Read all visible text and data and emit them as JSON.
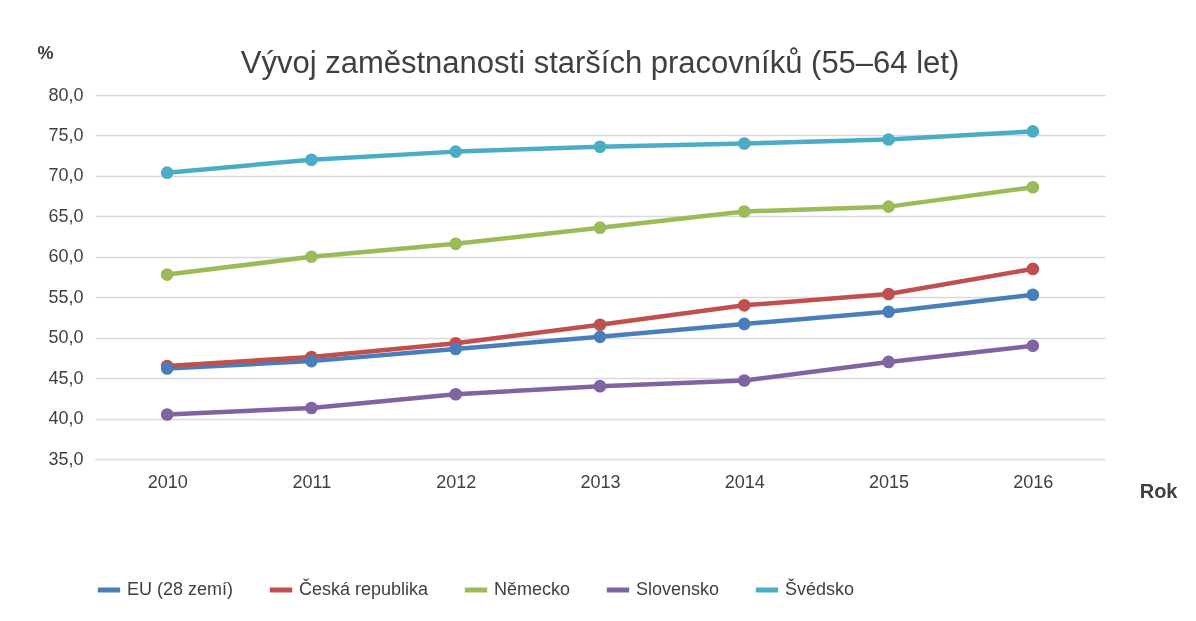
{
  "chart_data": {
    "type": "line",
    "title": "Vývoj zaměstnanosti starších pracovníků (55–64 let)",
    "xlabel": "Rok",
    "ylabel": "%",
    "categories": [
      "2010",
      "2011",
      "2012",
      "2013",
      "2014",
      "2015",
      "2016"
    ],
    "series": [
      {
        "name": "EU (28 zemí)",
        "color": "#4a7ebb",
        "values": [
          46.2,
          47.1,
          48.6,
          50.1,
          51.7,
          53.2,
          55.3
        ]
      },
      {
        "name": "Česká republika",
        "color": "#c0504d",
        "values": [
          46.5,
          47.6,
          49.3,
          51.6,
          54.0,
          55.4,
          58.5
        ]
      },
      {
        "name": "Německo",
        "color": "#9bbb59",
        "values": [
          57.8,
          60.0,
          61.6,
          63.6,
          65.6,
          66.2,
          68.6
        ]
      },
      {
        "name": "Slovensko",
        "color": "#8064a2",
        "values": [
          40.5,
          41.3,
          43.0,
          44.0,
          44.7,
          47.0,
          49.0
        ]
      },
      {
        "name": "Švédsko",
        "color": "#4bacc6",
        "values": [
          70.4,
          72.0,
          73.0,
          73.6,
          74.0,
          74.5,
          75.5
        ]
      }
    ],
    "ylim": [
      35,
      80
    ],
    "yticks": [
      {
        "value": 35,
        "label": "35,0"
      },
      {
        "value": 40,
        "label": "40,0"
      },
      {
        "value": 45,
        "label": "45,0"
      },
      {
        "value": 50,
        "label": "50,0"
      },
      {
        "value": 55,
        "label": "55,0"
      },
      {
        "value": 60,
        "label": "60,0"
      },
      {
        "value": 65,
        "label": "65,0"
      },
      {
        "value": 70,
        "label": "70,0"
      },
      {
        "value": 75,
        "label": "75,0"
      },
      {
        "value": 80,
        "label": "80,0"
      }
    ],
    "grid": "y",
    "legend": "bottom",
    "marker": "circle",
    "line_style": "solid"
  }
}
